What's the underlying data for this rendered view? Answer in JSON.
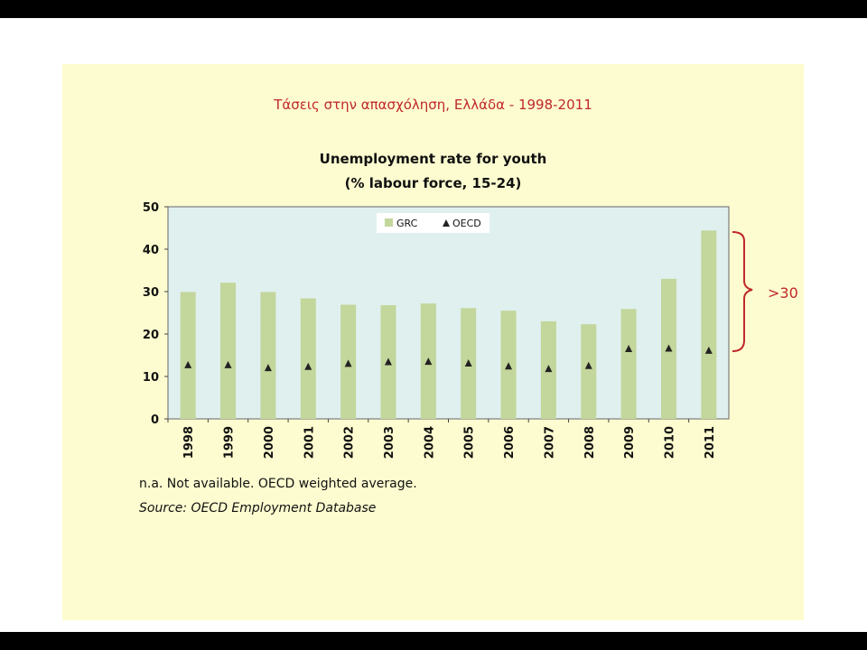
{
  "slide": {
    "title": "Τάσεις στην απασχόληση, Ελλάδα - 1998-2011",
    "annotation": ">30"
  },
  "chart_data": {
    "type": "bar",
    "title": "Unemployment rate for youth",
    "subtitle": "(% labour force, 15-24)",
    "xlabel": "",
    "ylabel": "",
    "ylim": [
      0,
      50
    ],
    "yticks": [
      0,
      10,
      20,
      30,
      40,
      50
    ],
    "categories": [
      "1998",
      "1999",
      "2000",
      "2001",
      "2002",
      "2003",
      "2004",
      "2005",
      "2006",
      "2007",
      "2008",
      "2009",
      "2010",
      "2011"
    ],
    "series": [
      {
        "name": "GRC",
        "kind": "bar",
        "color": "#c3d69b",
        "values": [
          29.9,
          32.1,
          29.9,
          28.4,
          26.9,
          26.8,
          27.2,
          26.1,
          25.5,
          23.0,
          22.3,
          25.9,
          33.0,
          44.4
        ]
      },
      {
        "name": "OECD",
        "kind": "marker",
        "marker": "triangle",
        "color": "#222222",
        "values": [
          12.8,
          12.8,
          12.1,
          12.4,
          13.1,
          13.5,
          13.6,
          13.2,
          12.5,
          11.9,
          12.6,
          16.6,
          16.7,
          16.2
        ]
      }
    ],
    "legend_position": "top-center",
    "grid": false,
    "plot_background": "#dff0ef"
  },
  "footnotes": {
    "note": "n.a. Not available. OECD weighted average.",
    "source": "Source: OECD Employment Database"
  }
}
